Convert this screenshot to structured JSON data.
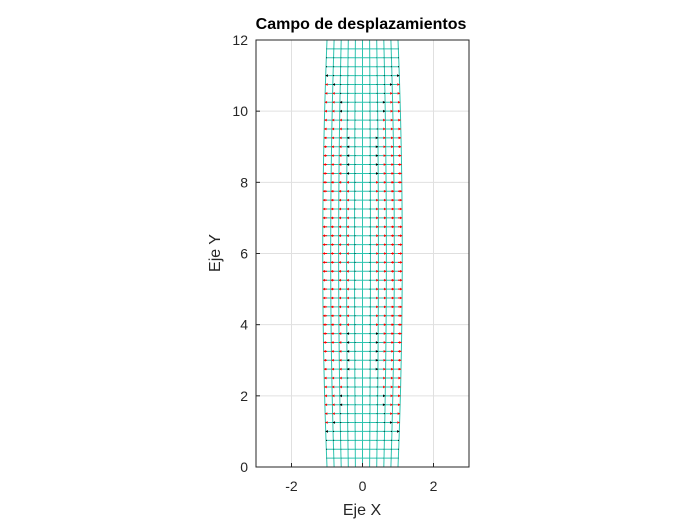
{
  "chart_data": {
    "type": "vector-field",
    "title": "Campo de desplazamientos",
    "xlabel": "Eje X",
    "ylabel": "Eje Y",
    "xlim": [
      -3,
      3
    ],
    "ylim": [
      0,
      12
    ],
    "xticks": [
      -2,
      0,
      2
    ],
    "yticks": [
      0,
      2,
      4,
      6,
      8,
      10,
      12
    ],
    "grid": true,
    "mesh": {
      "x_range": [
        -1,
        1
      ],
      "y_range": [
        0,
        12
      ],
      "nx": 10,
      "ny": 48,
      "color": "#2ec4b0"
    },
    "displacement": {
      "description_values": "horizontal displacement at the outer edges, symmetric about x=0, maximum near y=6",
      "max_ux": 0.12,
      "center_y": 6,
      "color": "#ff0000",
      "neutral_color": "#000000"
    }
  }
}
